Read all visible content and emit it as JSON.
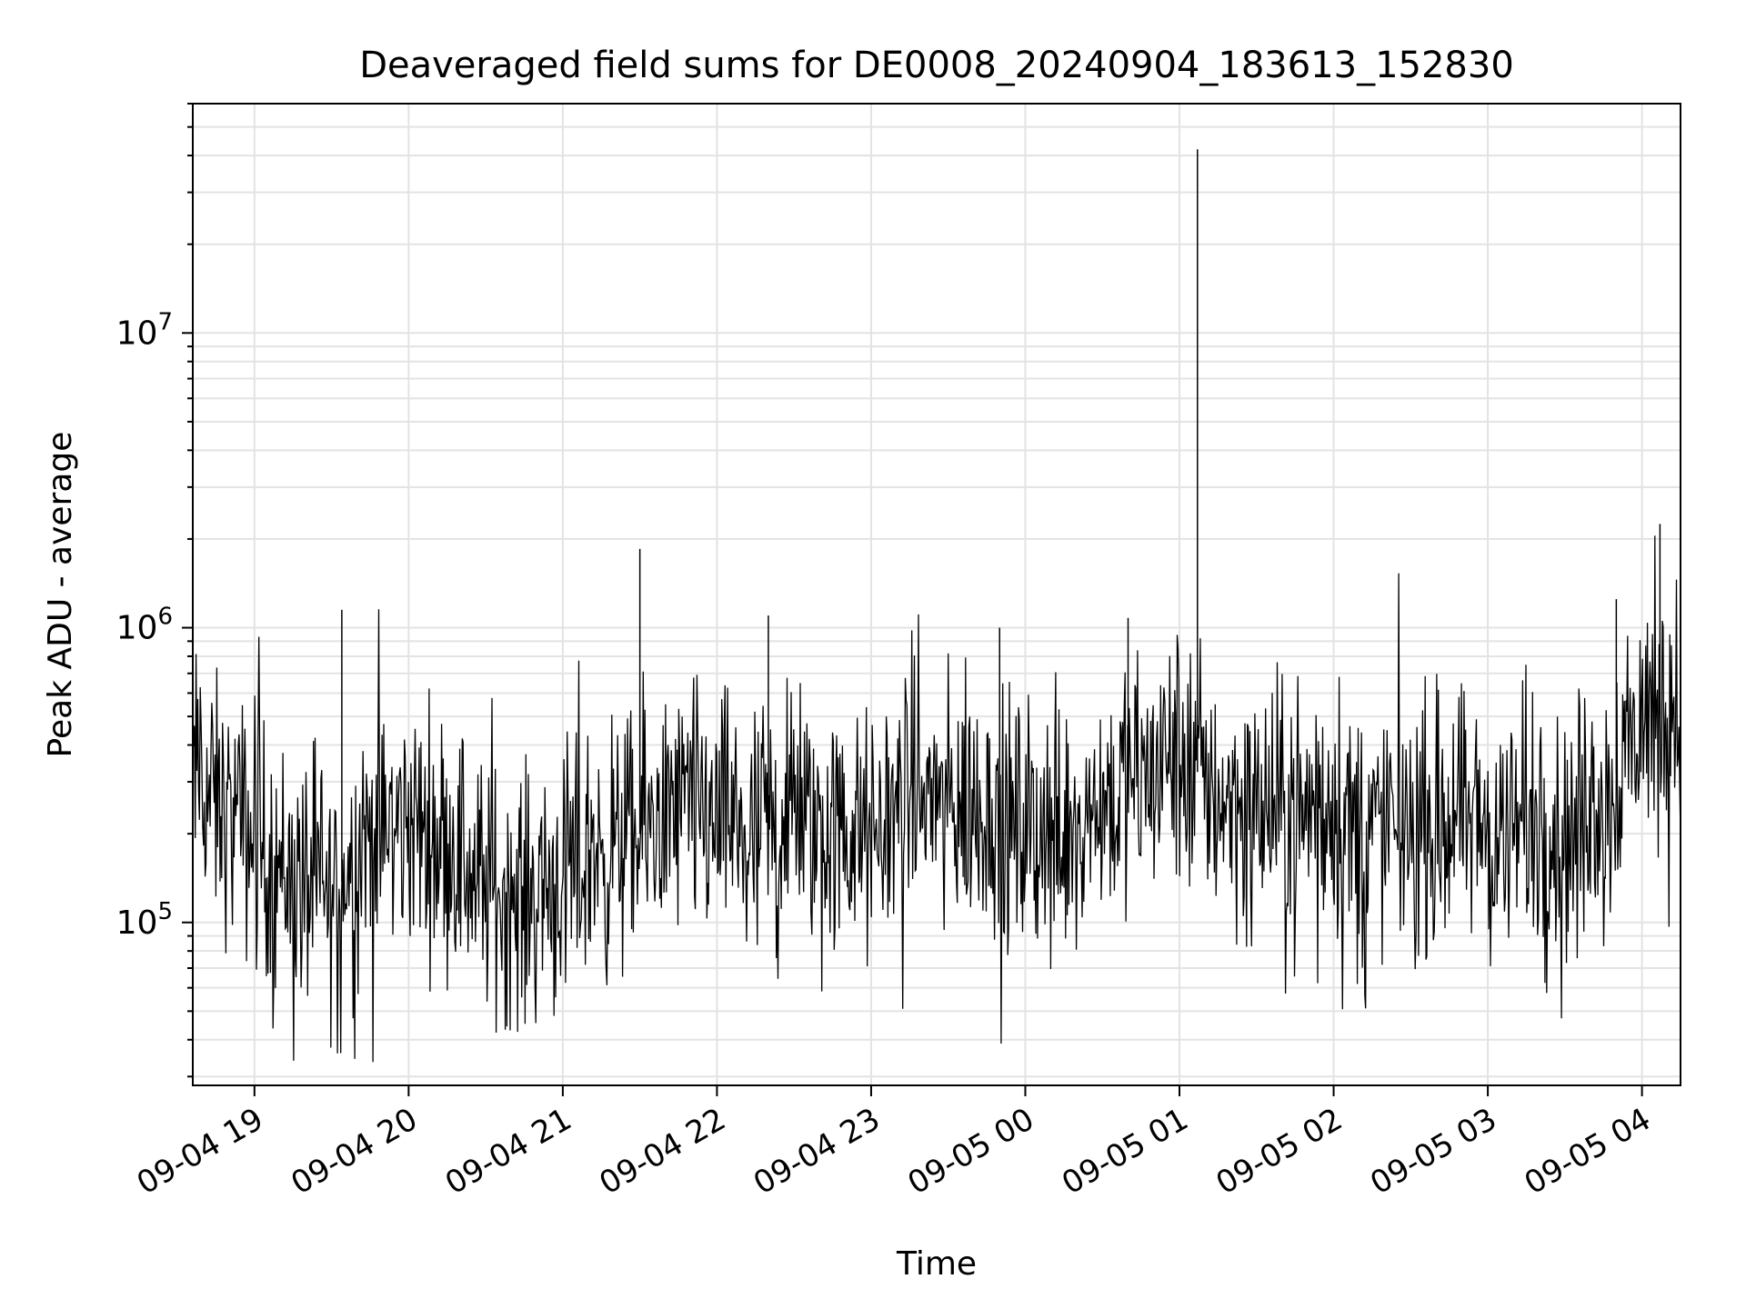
{
  "chart_data": {
    "type": "line",
    "title": "Deaveraged field sums for DE0008_20240904_183613_152830",
    "xlabel": "Time",
    "ylabel": "Peak ADU - average",
    "y_scale": "log",
    "ylim": [
      28000,
      60000000
    ],
    "xlim": [
      "09-04 18:36",
      "09-05 04:15"
    ],
    "grid": true,
    "legend": "none",
    "line_color": "#000000",
    "x_ticks": [
      "09-04 19",
      "09-04 20",
      "09-04 21",
      "09-04 22",
      "09-04 23",
      "09-05 00",
      "09-05 01",
      "09-05 02",
      "09-05 03",
      "09-05 04"
    ],
    "y_ticks": [
      {
        "value": 100000,
        "base": "10",
        "exp": "5"
      },
      {
        "value": 1000000,
        "base": "10",
        "exp": "6"
      },
      {
        "value": 10000000,
        "base": "10",
        "exp": "7"
      }
    ],
    "series": [
      {
        "x": [
          "09-04 18:36",
          "09-04 18:45",
          "09-04 19:00",
          "09-04 19:15",
          "09-04 19:30",
          "09-04 19:45",
          "09-04 20:00",
          "09-04 20:15",
          "09-04 20:30",
          "09-04 20:45",
          "09-04 21:00",
          "09-04 21:15",
          "09-04 21:30",
          "09-04 21:45",
          "09-04 22:00",
          "09-04 22:15",
          "09-04 22:30",
          "09-04 22:45",
          "09-04 23:00",
          "09-04 23:15",
          "09-04 23:30",
          "09-04 23:45",
          "09-05 00:00",
          "09-05 00:15",
          "09-05 00:30",
          "09-05 00:45",
          "09-05 01:00",
          "09-05 01:15",
          "09-05 01:30",
          "09-05 01:45",
          "09-05 02:00",
          "09-05 02:15",
          "09-05 02:30",
          "09-05 02:45",
          "09-05 03:00",
          "09-05 03:15",
          "09-05 03:30",
          "09-05 03:45",
          "09-05 04:00",
          "09-05 04:15"
        ],
        "values": [
          320000,
          250000,
          190000,
          140000,
          120000,
          200000,
          220000,
          190000,
          130000,
          120000,
          140000,
          170000,
          200000,
          240000,
          220000,
          200000,
          230000,
          200000,
          190000,
          280000,
          240000,
          230000,
          210000,
          220000,
          260000,
          300000,
          380000,
          270000,
          250000,
          230000,
          220000,
          210000,
          210000,
          230000,
          200000,
          210000,
          200000,
          260000,
          480000,
          540000
        ],
        "peaks": [
          {
            "x": "09-04 19:34",
            "value": 1150000
          },
          {
            "x": "09-04 21:30",
            "value": 1850000
          },
          {
            "x": "09-04 22:20",
            "value": 1100000
          },
          {
            "x": "09-04 23:50",
            "value": 1000000
          },
          {
            "x": "09-05 00:40",
            "value": 1080000
          },
          {
            "x": "09-05 01:07",
            "value": 42000000
          },
          {
            "x": "09-05 03:50",
            "value": 1250000
          },
          {
            "x": "09-05 04:07",
            "value": 2250000
          }
        ]
      }
    ]
  }
}
